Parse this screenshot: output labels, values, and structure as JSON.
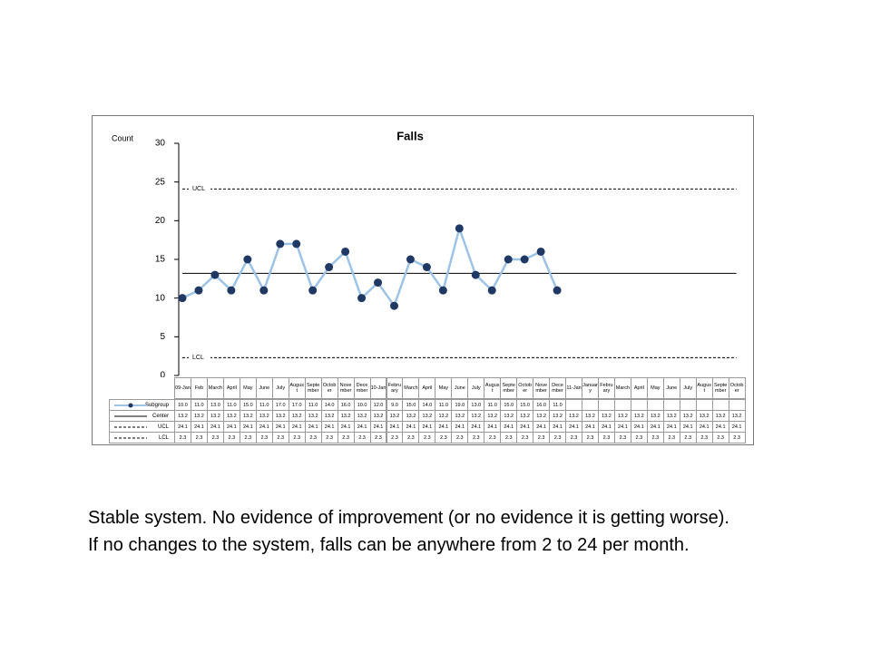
{
  "chart_data": {
    "type": "line",
    "title": "Falls",
    "y_label": "Count",
    "categories": [
      "09-Jan",
      "Feb",
      "March",
      "April",
      "May",
      "June",
      "July",
      "August",
      "September",
      "October",
      "November",
      "December",
      "10-Jan",
      "February",
      "March",
      "April",
      "May",
      "June",
      "July",
      "August",
      "September",
      "October",
      "November",
      "December",
      "11-Jan",
      "January",
      "February",
      "March",
      "April",
      "May",
      "June",
      "July",
      "August",
      "September",
      "October"
    ],
    "series": [
      {
        "name": "Subgroup",
        "color": "#9dc3e6",
        "marker_color": "#1f3864",
        "values": [
          10,
          11,
          13,
          11,
          15,
          11,
          17,
          17,
          11,
          14,
          16,
          10,
          12,
          9,
          15,
          14,
          11,
          19,
          13,
          11,
          15,
          15,
          16,
          11,
          null,
          null,
          null,
          null,
          null,
          null,
          null,
          null,
          null,
          null,
          null
        ],
        "value_labels": [
          "10.0",
          "11.0",
          "13.0",
          "11.0",
          "15.0",
          "11.0",
          "17.0",
          "17.0",
          "11.0",
          "14.0",
          "16.0",
          "10.0",
          "12.0",
          "9.0",
          "15.0",
          "14.0",
          "11.0",
          "19.0",
          "13.0",
          "11.0",
          "15.0",
          "15.0",
          "16.0",
          "11.0",
          null,
          null,
          null,
          null,
          null,
          null,
          null,
          null,
          null,
          null,
          null
        ]
      },
      {
        "name": "Center",
        "color": "#000000",
        "dashed": false,
        "values": [
          13.2,
          13.2,
          13.2,
          13.2,
          13.2,
          13.2,
          13.2,
          13.2,
          13.2,
          13.2,
          13.2,
          13.2,
          13.2,
          13.2,
          13.2,
          13.2,
          13.2,
          13.2,
          13.2,
          13.2,
          13.2,
          13.2,
          13.2,
          13.2,
          13.2,
          13.2,
          13.2,
          13.2,
          13.2,
          13.2,
          13.2,
          13.2,
          13.2,
          13.2,
          13.2
        ]
      },
      {
        "name": "UCL",
        "color": "#000000",
        "dashed": true,
        "values": [
          24.1,
          24.1,
          24.1,
          24.1,
          24.1,
          24.1,
          24.1,
          24.1,
          24.1,
          24.1,
          24.1,
          24.1,
          24.1,
          24.1,
          24.1,
          24.1,
          24.1,
          24.1,
          24.1,
          24.1,
          24.1,
          24.1,
          24.1,
          24.1,
          24.1,
          24.1,
          24.1,
          24.1,
          24.1,
          24.1,
          24.1,
          24.1,
          24.1,
          24.1,
          24.1
        ]
      },
      {
        "name": "LCL",
        "color": "#000000",
        "dashed": true,
        "values": [
          2.3,
          2.3,
          2.3,
          2.3,
          2.3,
          2.3,
          2.3,
          2.3,
          2.3,
          2.3,
          2.3,
          2.3,
          2.3,
          2.3,
          2.3,
          2.3,
          2.3,
          2.3,
          2.3,
          2.3,
          2.3,
          2.3,
          2.3,
          2.3,
          2.3,
          2.3,
          2.3,
          2.3,
          2.3,
          2.3,
          2.3,
          2.3,
          2.3,
          2.3,
          2.3
        ]
      }
    ],
    "annotations": [
      "UCL",
      "LCL"
    ],
    "ylim": [
      0,
      30
    ],
    "yticks": [
      0,
      5,
      10,
      15,
      20,
      25,
      30
    ],
    "grid": false
  },
  "caption": "Stable system. No evidence of improvement (or no evidence it is getting worse). If no changes to the system, falls can be anywhere from 2 to 24 per month."
}
